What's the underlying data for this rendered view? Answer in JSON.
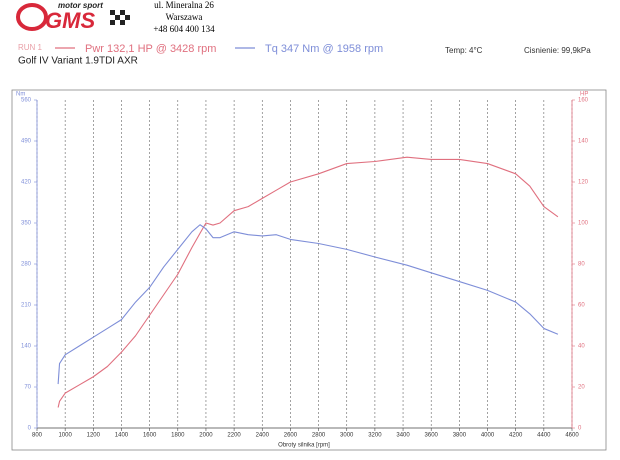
{
  "header": {
    "brand": "motor sport",
    "logo": "GMS",
    "address": [
      "ul. Mineralna 26",
      "Warszawa",
      "+48 604 400 134"
    ]
  },
  "chart_data": {
    "type": "line",
    "title": "Golf IV Variant 1.9TDI AXR",
    "run_label": "RUN 1",
    "temperature": "Temp: 4°C",
    "pressure": "Cisnienie: 99,9kPa",
    "x_label": "Obroty silnika [rpm]",
    "y_label": "Nm",
    "y2_label": "HP",
    "x": [
      950,
      960,
      1000,
      1100,
      1200,
      1300,
      1400,
      1500,
      1600,
      1700,
      1800,
      1900,
      1958,
      2000,
      2050,
      2100,
      2200,
      2300,
      2400,
      2500,
      2600,
      2800,
      3000,
      3200,
      3428,
      3600,
      3800,
      4000,
      4200,
      4300,
      4400,
      4500
    ],
    "series": [
      {
        "name": "Pwr 132,1 HP @ 3428 rpm",
        "color": "#e0707f",
        "axis": "y2",
        "values": [
          10,
          13,
          17,
          21,
          25,
          30,
          37,
          45,
          55,
          65,
          75,
          88,
          95,
          100,
          99,
          100,
          106,
          108,
          112,
          116,
          120,
          124,
          129,
          130,
          132.1,
          131,
          131,
          129,
          124,
          118,
          108,
          103
        ]
      },
      {
        "name": "Tq 347 Nm @ 1958 rpm",
        "color": "#7e8ed8",
        "values": [
          75,
          110,
          125,
          140,
          155,
          170,
          185,
          215,
          240,
          275,
          305,
          335,
          347,
          340,
          325,
          325,
          335,
          330,
          328,
          330,
          322,
          315,
          305,
          292,
          278,
          265,
          250,
          235,
          215,
          195,
          170,
          160
        ]
      }
    ],
    "xlim": [
      800,
      4600
    ],
    "xticks": [
      800,
      1000,
      1200,
      1400,
      1600,
      1800,
      2000,
      2200,
      2400,
      2600,
      2800,
      3000,
      3200,
      3400,
      3600,
      3800,
      4000,
      4200,
      4400,
      4600
    ],
    "ylim": [
      0,
      560
    ],
    "yticks": [
      0,
      70,
      140,
      210,
      280,
      350,
      420,
      490,
      560
    ],
    "y2lim": [
      0,
      160
    ],
    "y2ticks": [
      0,
      20,
      40,
      60,
      80,
      100,
      120,
      140,
      160
    ],
    "grid": "x"
  }
}
